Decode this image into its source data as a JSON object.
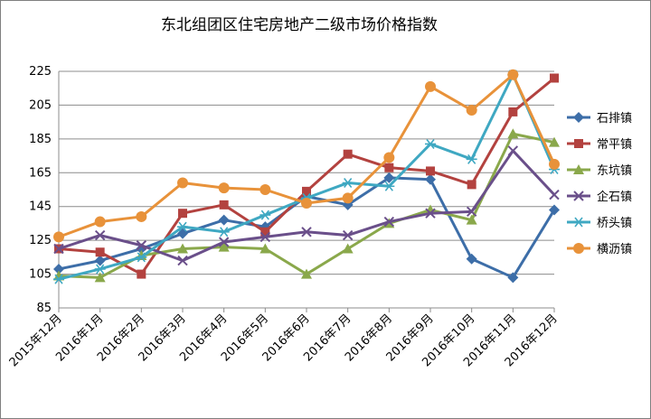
{
  "chart_data": {
    "type": "line",
    "title": "东北组团区住宅房地产二级市场价格指数",
    "xlabel": "",
    "ylabel": "",
    "categories": [
      "2015年12月",
      "2016年1月",
      "2016年2月",
      "2016年3月",
      "2016年4月",
      "2016年5月",
      "2016年6月",
      "2016年7月",
      "2016年8月",
      "2016年9月",
      "2016年10月",
      "2016年11月",
      "2016年12月"
    ],
    "ylim": [
      85,
      225
    ],
    "yticks": [
      85,
      105,
      125,
      145,
      165,
      185,
      205,
      225
    ],
    "grid": true,
    "legend": "right",
    "series": [
      {
        "name": "石排镇",
        "color": "#3d6ea8",
        "marker": "diamond",
        "values": [
          108,
          113,
          120,
          129,
          137,
          133,
          151,
          146,
          162,
          161,
          114,
          103,
          143
        ]
      },
      {
        "name": "常平镇",
        "color": "#b3423f",
        "marker": "square",
        "values": [
          120,
          118,
          105,
          141,
          146,
          130,
          154,
          176,
          168,
          166,
          158,
          201,
          221
        ]
      },
      {
        "name": "东坑镇",
        "color": "#8aa84b",
        "marker": "triangle",
        "values": [
          104,
          103,
          116,
          120,
          121,
          120,
          105,
          120,
          135,
          143,
          137,
          188,
          183
        ]
      },
      {
        "name": "企石镇",
        "color": "#6a4f8a",
        "marker": "x",
        "values": [
          120,
          128,
          122,
          113,
          124,
          127,
          130,
          128,
          136,
          141,
          142,
          178,
          152
        ]
      },
      {
        "name": "桥头镇",
        "color": "#3fa8c2",
        "marker": "star",
        "values": [
          102,
          108,
          115,
          133,
          130,
          140,
          150,
          159,
          157,
          182,
          173,
          223,
          167
        ]
      },
      {
        "name": "横沥镇",
        "color": "#e8923a",
        "marker": "circle",
        "values": [
          127,
          136,
          139,
          159,
          156,
          155,
          147,
          150,
          174,
          216,
          202,
          223,
          170
        ]
      }
    ]
  }
}
